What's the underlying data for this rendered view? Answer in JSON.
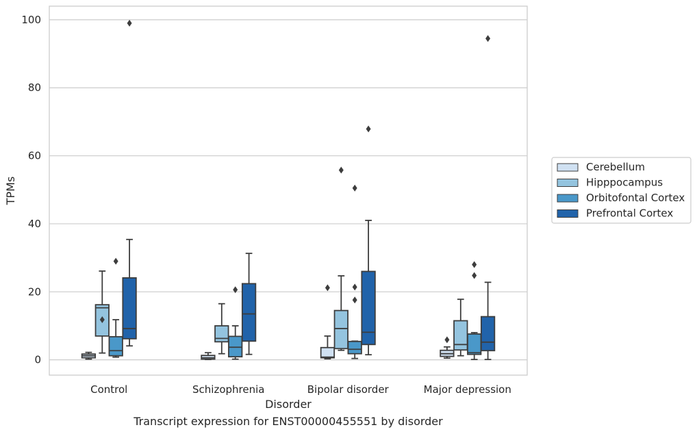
{
  "caption": "Transcript expression for ENST00000455551 by disorder",
  "chart_data": {
    "type": "box",
    "xlabel": "Disorder",
    "ylabel": "TPMs",
    "ylim": [
      -4.5,
      104
    ],
    "yticks": [
      0,
      20,
      40,
      60,
      80,
      100
    ],
    "grid": "horizontal",
    "legend_position": "right",
    "categories": [
      "Control",
      "Schizophrenia",
      "Bipolar disorder",
      "Major depression"
    ],
    "series": [
      {
        "name": "Cerebellum",
        "color": "#d0e1f2",
        "boxes": [
          {
            "whislo": 0.2,
            "q1": 0.6,
            "med": 1.2,
            "q3": 1.7,
            "whishi": 2.2,
            "fliers": []
          },
          {
            "whislo": 0.1,
            "q1": 0.2,
            "med": 0.6,
            "q3": 1.3,
            "whishi": 2.1,
            "fliers": []
          },
          {
            "whislo": 0.3,
            "q1": 0.6,
            "med": 0.8,
            "q3": 3.6,
            "whishi": 7.0,
            "fliers": [
              21.2
            ]
          },
          {
            "whislo": 0.5,
            "q1": 1.0,
            "med": 1.8,
            "q3": 2.8,
            "whishi": 3.8,
            "fliers": [
              5.9
            ]
          }
        ]
      },
      {
        "name": "Hipppocampus",
        "color": "#94c4df",
        "boxes": [
          {
            "whislo": 2.0,
            "q1": 7.0,
            "med": 15.3,
            "q3": 16.2,
            "whishi": 26.1,
            "fliers": [
              11.8
            ]
          },
          {
            "whislo": 1.8,
            "q1": 5.3,
            "med": 6.3,
            "q3": 10.0,
            "whishi": 16.5,
            "fliers": []
          },
          {
            "whislo": 2.8,
            "q1": 3.3,
            "med": 9.2,
            "q3": 14.5,
            "whishi": 24.7,
            "fliers": [
              55.8
            ]
          },
          {
            "whislo": 1.2,
            "q1": 2.9,
            "med": 4.5,
            "q3": 11.5,
            "whishi": 17.8,
            "fliers": []
          }
        ]
      },
      {
        "name": "Orbitofontal Cortex",
        "color": "#4a98c9",
        "boxes": [
          {
            "whislo": 0.8,
            "q1": 1.2,
            "med": 2.7,
            "q3": 6.8,
            "whishi": 11.8,
            "fliers": [
              29.0
            ]
          },
          {
            "whislo": 0.2,
            "q1": 0.9,
            "med": 3.7,
            "q3": 6.9,
            "whishi": 10.0,
            "fliers": [
              20.6
            ]
          },
          {
            "whislo": 0.4,
            "q1": 1.8,
            "med": 3.1,
            "q3": 5.4,
            "whishi": 5.5,
            "fliers": [
              21.4,
              17.6,
              50.5
            ]
          },
          {
            "whislo": 0.1,
            "q1": 1.6,
            "med": 2.1,
            "q3": 7.6,
            "whishi": 8.0,
            "fliers": [
              24.8,
              28.0
            ]
          }
        ]
      },
      {
        "name": "Prefrontal Cortex",
        "color": "#2163aa",
        "boxes": [
          {
            "whislo": 4.1,
            "q1": 6.2,
            "med": 9.2,
            "q3": 24.1,
            "whishi": 35.4,
            "fliers": [
              99.0
            ]
          },
          {
            "whislo": 1.6,
            "q1": 5.5,
            "med": 13.5,
            "q3": 22.4,
            "whishi": 31.3,
            "fliers": []
          },
          {
            "whislo": 1.5,
            "q1": 4.5,
            "med": 8.1,
            "q3": 26.0,
            "whishi": 41.0,
            "fliers": [
              67.9
            ]
          },
          {
            "whislo": 0.1,
            "q1": 2.7,
            "med": 5.2,
            "q3": 12.7,
            "whishi": 22.8,
            "fliers": [
              94.5
            ]
          }
        ]
      }
    ]
  }
}
